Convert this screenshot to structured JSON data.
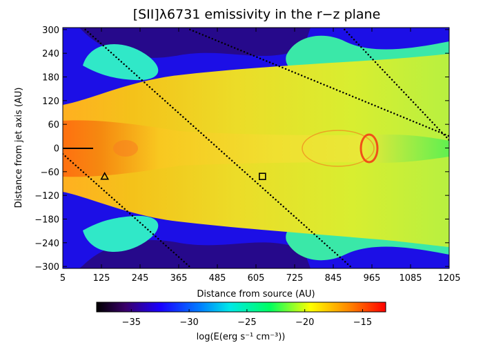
{
  "chart_data": {
    "type": "heatmap",
    "title": "[SII]λ6731 emissivity in the r−z plane",
    "xlabel": "Distance from source (AU)",
    "ylabel": "Distance from jet axis (AU)",
    "xlim": [
      5,
      1205
    ],
    "ylim": [
      -305,
      305
    ],
    "x_ticks": [
      "5",
      "125",
      "245",
      "365",
      "485",
      "605",
      "725",
      "845",
      "965",
      "1085",
      "1205"
    ],
    "y_ticks": [
      "−300",
      "−240",
      "−180",
      "−120",
      "−60",
      "0",
      "60",
      "120",
      "180",
      "240",
      "300"
    ],
    "colorbar": {
      "label": "log(E(erg s⁻¹ cm⁻³))",
      "range": [
        -38,
        -13
      ],
      "ticks": [
        "−35",
        "−30",
        "−25",
        "−20",
        "−15"
      ],
      "colormap": [
        "#000000",
        "#3a006a",
        "#1a00ff",
        "#0080ff",
        "#00e8e8",
        "#00ff60",
        "#ffff00",
        "#ff8000",
        "#ff0000"
      ]
    },
    "markers": [
      {
        "shape": "triangle",
        "x": 135,
        "y": -72
      },
      {
        "shape": "square",
        "x": 625,
        "y": -72
      }
    ],
    "dotted_lines": [
      {
        "from": [
          75,
          300
        ],
        "to": [
          905,
          -305
        ]
      },
      {
        "from": [
          400,
          300
        ],
        "to": [
          1205,
          30
        ]
      },
      {
        "from": [
          5,
          -15
        ],
        "to": [
          405,
          -305
        ]
      },
      {
        "from": [
          880,
          300
        ],
        "to": [
          1205,
          20
        ]
      }
    ],
    "colors": {
      "outer_background": "#1c0fe6",
      "jet_core": "#f2df1e",
      "shock_hot": "#f07010"
    }
  }
}
